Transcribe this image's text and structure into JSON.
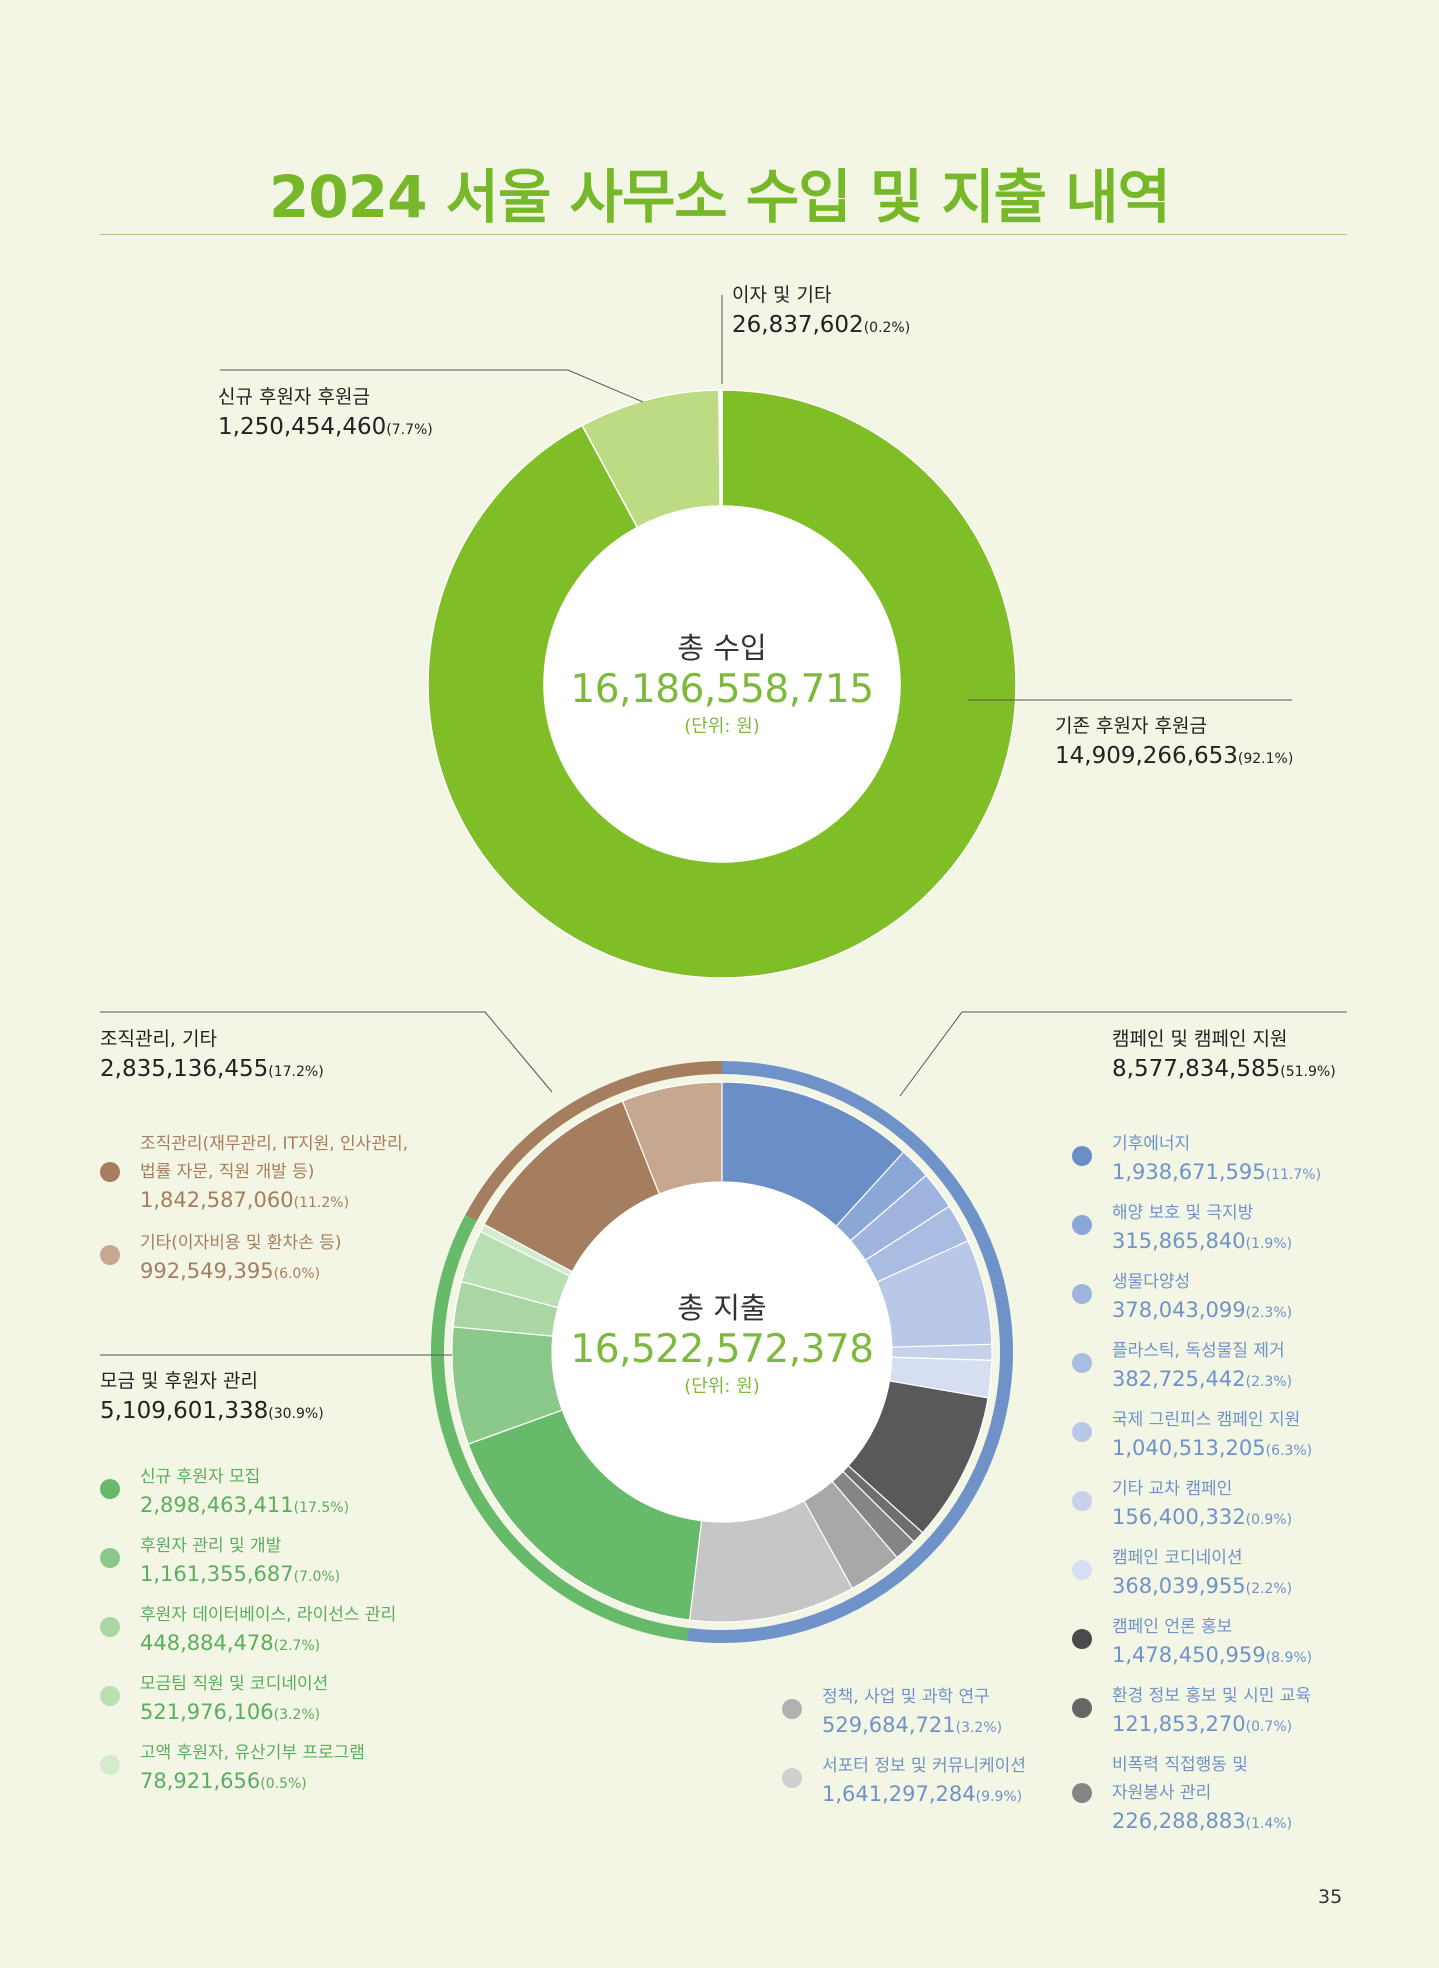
{
  "page": {
    "title": "2024 서울 사무소 수입 및 지출 내역",
    "page_number": "35"
  },
  "income": {
    "center_title": "총 수입",
    "center_value": "16,186,558,715",
    "center_unit": "(단위: 원)",
    "labels": {
      "interest": {
        "name": "이자 및 기타",
        "value": "26,837,602",
        "pct": "(0.2%)"
      },
      "new_donors": {
        "name": "신규 후원자 후원금",
        "value": "1,250,454,460",
        "pct": "(7.7%)"
      },
      "existing_donors": {
        "name": "기존 후원자 후원금",
        "value": "14,909,266,653",
        "pct": "(92.1%)"
      }
    }
  },
  "expense": {
    "center_title": "총 지출",
    "center_value": "16,522,572,378",
    "center_unit": "(단위: 원)",
    "groups": {
      "org": {
        "name": "조직관리, 기타",
        "value": "2,835,136,455",
        "pct": "(17.2%)"
      },
      "campaign": {
        "name": "캠페인 및 캠페인 지원",
        "value": "8,577,834,585",
        "pct": "(51.9%)"
      },
      "fundraising": {
        "name": "모금 및 후원자 관리",
        "value": "5,109,601,338",
        "pct": "(30.9%)"
      }
    },
    "legend": {
      "org": [
        {
          "name": "조직관리(재무관리, IT지원, 인사관리,",
          "name2": "법률 자문, 직원 개발 등)",
          "value": "1,842,587,060",
          "pct": "(11.2%)"
        },
        {
          "name": "기타(이자비용 및 환차손 등)",
          "value": "992,549,395",
          "pct": "(6.0%)"
        }
      ],
      "fundraising": [
        {
          "name": "신규 후원자 모집",
          "value": "2,898,463,411",
          "pct": "(17.5%)"
        },
        {
          "name": "후원자 관리 및 개발",
          "value": "1,161,355,687",
          "pct": "(7.0%)"
        },
        {
          "name": "후원자 데이터베이스, 라이선스 관리",
          "value": "448,884,478",
          "pct": "(2.7%)"
        },
        {
          "name": "모금팀 직원 및 코디네이션",
          "value": "521,976,106",
          "pct": "(3.2%)"
        },
        {
          "name": "고액 후원자, 유산기부 프로그램",
          "value": "78,921,656",
          "pct": "(0.5%)"
        }
      ],
      "research": [
        {
          "name": "정책, 사업 및 과학 연구",
          "value": "529,684,721",
          "pct": "(3.2%)"
        },
        {
          "name": "서포터 정보 및 커뮤니케이션",
          "value": "1,641,297,284",
          "pct": "(9.9%)"
        }
      ],
      "campaign": [
        {
          "name": "기후에너지",
          "value": "1,938,671,595",
          "pct": "(11.7%)"
        },
        {
          "name": "해양 보호 및 극지방",
          "value": "315,865,840",
          "pct": "(1.9%)"
        },
        {
          "name": "생물다양성",
          "value": "378,043,099",
          "pct": "(2.3%)"
        },
        {
          "name": "플라스틱, 독성물질 제거",
          "value": "382,725,442",
          "pct": "(2.3%)"
        },
        {
          "name": "국제 그린피스 캠페인 지원",
          "value": "1,040,513,205",
          "pct": "(6.3%)"
        },
        {
          "name": "기타 교차 캠페인",
          "value": "156,400,332",
          "pct": "(0.9%)"
        },
        {
          "name": "캠페인 코디네이션",
          "value": "368,039,955",
          "pct": "(2.2%)"
        },
        {
          "name": "캠페인 언론 홍보",
          "value": "1,478,450,959",
          "pct": "(8.9%)"
        },
        {
          "name": "환경 정보 홍보 및 시민 교육",
          "value": "121,853,270",
          "pct": "(0.7%)"
        },
        {
          "name": "비폭력 직접행동 및",
          "name2": "자원봉사 관리",
          "value": "226,288,883",
          "pct": "(1.4%)"
        }
      ]
    }
  },
  "chart_data": [
    {
      "type": "pie",
      "title": "총 수입",
      "categories": [
        "기존 후원자 후원금",
        "신규 후원자 후원금",
        "이자 및 기타"
      ],
      "values": [
        14909266653,
        1250454460,
        26837602
      ],
      "percent": [
        92.1,
        7.7,
        0.2
      ],
      "colors": [
        "#80be28",
        "#bcdb83",
        "#ffffff"
      ]
    },
    {
      "type": "pie",
      "title": "총 지출",
      "categories": [
        "기후에너지",
        "해양 보호 및 극지방",
        "생물다양성",
        "플라스틱, 독성물질 제거",
        "국제 그린피스 캠페인 지원",
        "기타 교차 캠페인",
        "캠페인 코디네이션",
        "캠페인 언론 홍보",
        "환경 정보 홍보 및 시민 교육",
        "비폭력 직접행동 및 자원봉사 관리",
        "정책, 사업 및 과학 연구",
        "서포터 정보 및 커뮤니케이션",
        "신규 후원자 모집",
        "후원자 관리 및 개발",
        "후원자 데이터베이스, 라이선스 관리",
        "모금팀 직원 및 코디네이션",
        "고액 후원자, 유산기부 프로그램",
        "조직관리(재무관리, IT지원, 인사관리, 법률 자문, 직원 개발 등)",
        "기타(이자비용 및 환차손 등)"
      ],
      "values": [
        1938671595,
        315865840,
        378043099,
        382725442,
        1040513205,
        156400332,
        368039955,
        1478450959,
        121853270,
        226288883,
        529684721,
        1641297284,
        2898463411,
        1161355687,
        448884478,
        521976106,
        78921656,
        1842587060,
        992549395
      ],
      "percent": [
        11.7,
        1.9,
        2.3,
        2.3,
        6.3,
        0.9,
        2.2,
        8.9,
        0.7,
        1.4,
        3.2,
        9.9,
        17.5,
        7.0,
        2.7,
        3.2,
        0.5,
        11.2,
        6.0
      ],
      "colors": [
        "#698fc6",
        "#8aa7d5",
        "#9fb4de",
        "#a9bce2",
        "#b9c8e6",
        "#c6d2ec",
        "#d6dff1",
        "#595959",
        "#6e6e6e",
        "#858585",
        "#a8a8a8",
        "#c6c6c6",
        "#66ba6a",
        "#8bc98a",
        "#a9d6a3",
        "#b9dfb3",
        "#d3ebce",
        "#a57e5f",
        "#c6a891"
      ],
      "groups": [
        {
          "name": "캠페인 및 캠페인 지원",
          "percent": 51.9,
          "color": "#6f93c8"
        },
        {
          "name": "모금 및 후원자 관리",
          "percent": 30.9,
          "color": "#66ba6a"
        },
        {
          "name": "조직관리, 기타",
          "percent": 17.2,
          "color": "#a57e5f"
        }
      ]
    }
  ]
}
